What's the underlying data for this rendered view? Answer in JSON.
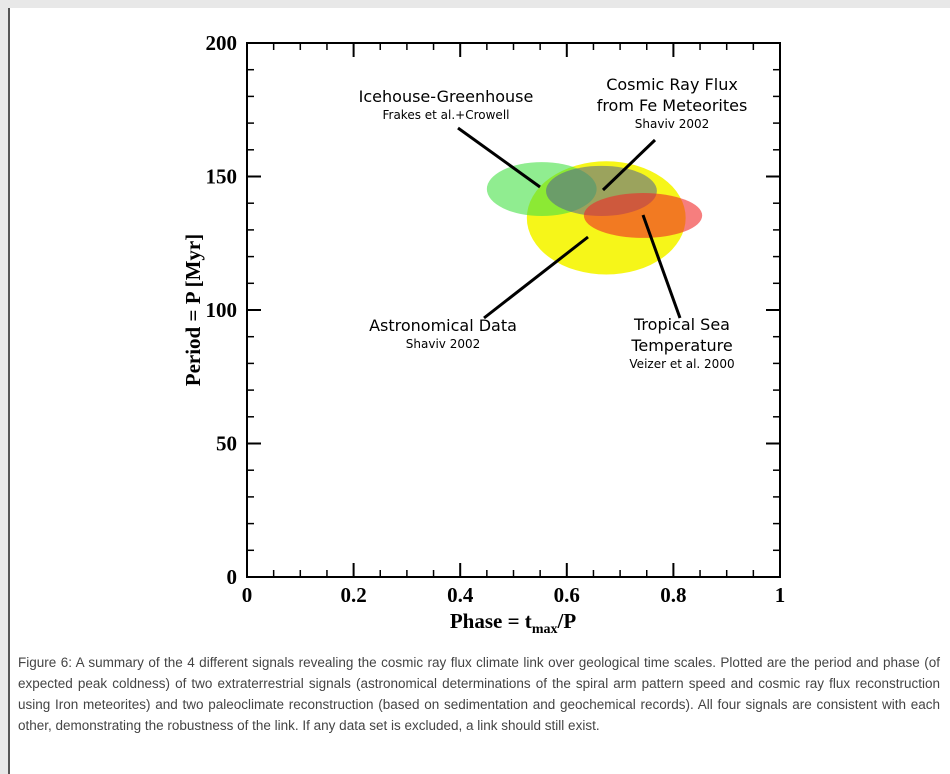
{
  "chart_data": {
    "type": "ellipse",
    "xlabel": "Phase = t",
    "xlabel_sub": "max",
    "xlabel_end": "/P",
    "ylabel": "Period = P [Myr]",
    "xlim": [
      0,
      1
    ],
    "xticks": [
      0,
      0.2,
      0.4,
      0.6,
      0.8,
      1
    ],
    "ylim": [
      0,
      200
    ],
    "yticks": [
      0,
      50,
      100,
      150,
      200
    ],
    "series": [
      {
        "name": [
          "Astronomical Data"
        ],
        "source": "Shaviv 2002",
        "color": "rgba(245,245,0,0.9)",
        "x": 0.674,
        "x_err": 0.149,
        "y": 134.5,
        "y_err": 21.2
      },
      {
        "name": [
          "Icehouse-Greenhouse"
        ],
        "source": "Frakes et al.+Crowell",
        "color": "rgba(70,225,70,0.6)",
        "x": 0.553,
        "x_err": 0.103,
        "y": 145.3,
        "y_err": 10.1
      },
      {
        "name": [
          "Cosmic Ray Flux",
          "from Fe Meteorites"
        ],
        "source": "Shaviv 2002",
        "color": "rgba(80,95,150,0.55)",
        "x": 0.665,
        "x_err": 0.104,
        "y": 144.6,
        "y_err": 9.4
      },
      {
        "name": [
          "Tropical Sea",
          "Temperature"
        ],
        "source": "Veizer et al. 2000",
        "color": "rgba(240,40,40,0.6)",
        "x": 0.743,
        "x_err": 0.111,
        "y": 135.4,
        "y_err": 8.4
      }
    ]
  },
  "caption": "Figure 6: A summary of the 4 different signals revealing the cosmic ray flux climate link over geological time scales. Plotted are the period and phase (of expected peak coldness) of two extraterrestrial signals (astronomical determinations of the spiral arm pattern speed and cosmic ray flux reconstruction using Iron meteorites) and two paleoclimate reconstruction (based on sedimentation and geochemical records). All four signals are consistent with each other, demonstrating the robustness of the link. If any data set is excluded, a link should still exist."
}
